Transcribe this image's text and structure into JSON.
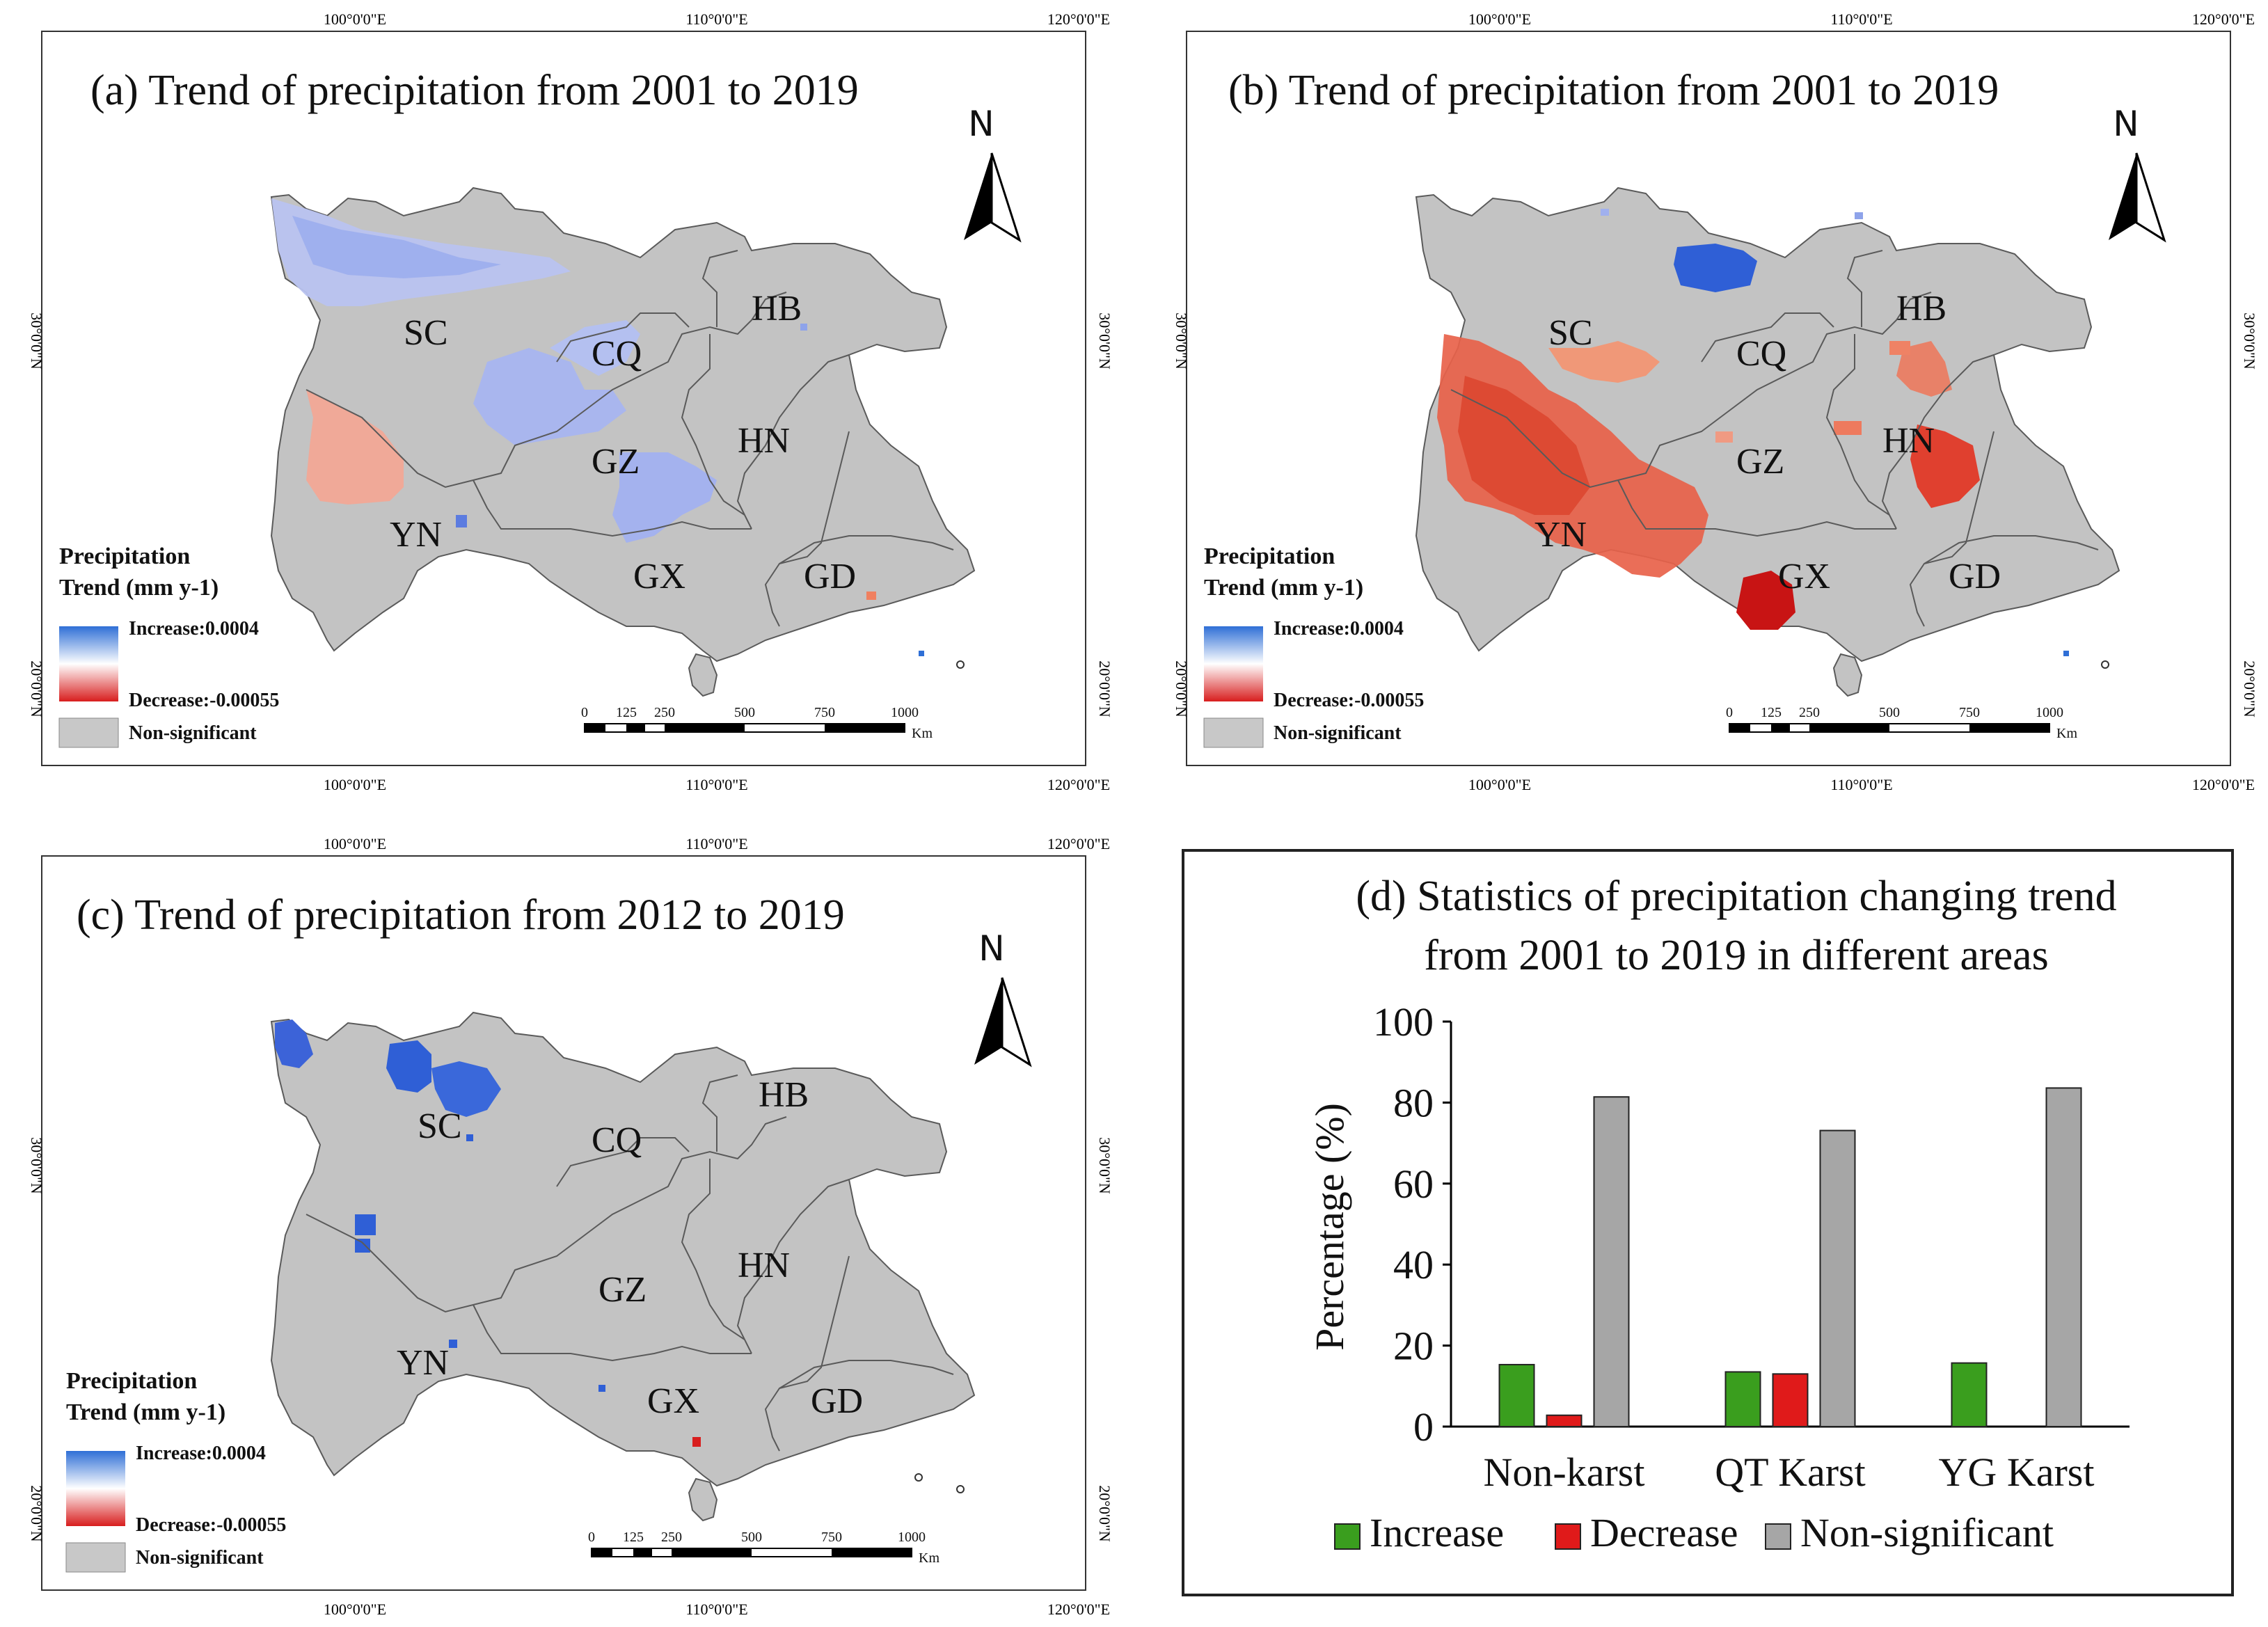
{
  "coords": {
    "top_lon": [
      "100°0'0\"E",
      "110°0'0\"E",
      "120°0'0\"E"
    ],
    "bottom_lon": [
      "100°0'0\"E",
      "110°0'0\"E",
      "120°0'0\"E"
    ],
    "lat": [
      "30°0'0\"N",
      "20°0'0\"N"
    ]
  },
  "north_label": "N",
  "provinces": [
    "SC",
    "CQ",
    "HB",
    "GZ",
    "HN",
    "YN",
    "GX",
    "GD"
  ],
  "legend": {
    "title_line1": "Precipitation",
    "title_line2": "Trend (mm y-1)",
    "increase": "Increase:0.0004",
    "decrease": "Decrease:-0.00055",
    "nonsig": "Non-significant",
    "increase_color": "#2f6fd6",
    "decrease_color": "#d81e1e",
    "nonsig_color": "#c8c8c8"
  },
  "scalebar": {
    "ticks": [
      "0",
      "125",
      "250",
      "500",
      "750",
      "1000"
    ],
    "unit": "Km"
  },
  "panels": {
    "a": {
      "title": "(a) Trend of precipitation from 2001 to 2019"
    },
    "b": {
      "title": "(b) Trend of precipitation from 2001 to 2019"
    },
    "c": {
      "title": "(c) Trend of precipitation from 2012 to 2019"
    }
  },
  "colors": {
    "map_fill": "#c3c3c3",
    "map_stroke": "#5a5a5a",
    "inc": "#2f6fd6",
    "inc_light": "#a9b6ee",
    "dec": "#e0402f",
    "dec_light": "#f2a08c"
  },
  "chart_data": {
    "type": "bar",
    "title_line1": "(d) Statistics of precipitation changing trend",
    "title_line2": "from 2001 to 2019 in different areas",
    "categories": [
      "Non-karst",
      "QT Karst",
      "YG Karst"
    ],
    "series": [
      {
        "name": "Increase",
        "color": "#3a9e1e",
        "values": [
          15.3,
          13.5,
          15.7
        ]
      },
      {
        "name": "Decrease",
        "color": "#e01a1a",
        "values": [
          2.8,
          13.0,
          0
        ]
      },
      {
        "name": "Non-significant",
        "color": "#a6a6a6",
        "values": [
          81.4,
          73.1,
          83.6
        ]
      }
    ],
    "ylabel": "Percentage (%)",
    "ylim": [
      0,
      100
    ],
    "yticks": [
      0,
      20,
      40,
      60,
      80,
      100
    ]
  }
}
